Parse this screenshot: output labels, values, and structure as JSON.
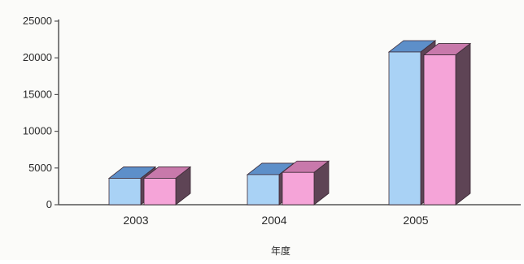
{
  "chart_data": {
    "type": "bar",
    "title": "",
    "xlabel": "年度",
    "ylabel": "",
    "categories": [
      "2003",
      "2004",
      "2005"
    ],
    "series": [
      {
        "values": [
          3600,
          4100,
          20800
        ]
      },
      {
        "values": [
          3600,
          4400,
          20400
        ]
      }
    ],
    "ylim": [
      0,
      25000
    ],
    "yticks": [
      0,
      5000,
      10000,
      15000,
      20000,
      25000
    ],
    "grid": false,
    "legend": "none",
    "style": "3d",
    "colors": {
      "series1_front": "#a9d2f5",
      "series1_top": "#5d8fc9",
      "series2_front": "#f5a4d8",
      "series2_top": "#c879ab",
      "side": "#5e4455",
      "axis": "#555555"
    }
  }
}
